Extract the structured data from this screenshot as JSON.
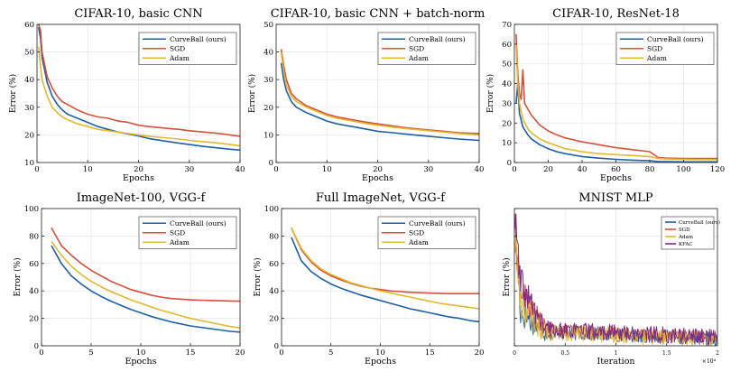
{
  "colors": {
    "curveball": "#1c5fa8",
    "sgd": "#d6503a",
    "adam": "#e3b72e",
    "kfac": "#7b2a86",
    "grid": "#e6e6e6",
    "axis": "#222222"
  },
  "chart_data": [
    {
      "type": "line",
      "title": "CIFAR-10, basic CNN",
      "xlabel": "Epochs",
      "ylabel": "Error (%)",
      "xlim": [
        0,
        40
      ],
      "ylim": [
        10,
        60
      ],
      "xticks": [
        0,
        10,
        20,
        30,
        40
      ],
      "yticks": [
        10,
        20,
        30,
        40,
        50,
        60
      ],
      "grid": true,
      "legend": "top-right",
      "series": [
        {
          "name": "CurveBall (ours)",
          "color_key": "curveball",
          "x": [
            0.3,
            0.7,
            1,
            2,
            3,
            4,
            5,
            6,
            8,
            10,
            12,
            14,
            16,
            18,
            20,
            22,
            25,
            28,
            30,
            33,
            36,
            38,
            40
          ],
          "y": [
            59,
            55,
            48,
            39,
            34,
            31,
            29,
            27.5,
            26,
            24.5,
            23,
            22,
            21,
            20.3,
            19.6,
            18.7,
            17.8,
            17,
            16.5,
            15.8,
            15.2,
            14.8,
            14.5
          ]
        },
        {
          "name": "SGD",
          "color_key": "sgd",
          "x": [
            0.3,
            0.7,
            1,
            2,
            3,
            4,
            5,
            6,
            8,
            10,
            12,
            14,
            16,
            18,
            20,
            22,
            25,
            28,
            30,
            33,
            36,
            38,
            40
          ],
          "y": [
            60,
            58,
            50,
            41,
            37,
            34,
            32,
            31,
            29,
            27.5,
            26.5,
            26,
            25,
            24.5,
            23.5,
            23,
            22.5,
            22,
            21.5,
            21,
            20.5,
            20,
            19.5
          ]
        },
        {
          "name": "Adam",
          "color_key": "adam",
          "x": [
            0.3,
            0.7,
            1,
            2,
            3,
            4,
            5,
            6,
            8,
            10,
            12,
            14,
            16,
            18,
            20,
            22,
            25,
            28,
            30,
            33,
            36,
            38,
            40
          ],
          "y": [
            52,
            45,
            40,
            34,
            30,
            28,
            26.5,
            25.5,
            24,
            23,
            22,
            21.5,
            21,
            20.5,
            20,
            19.5,
            19,
            18.5,
            18,
            17.5,
            17,
            16.5,
            16
          ]
        }
      ]
    },
    {
      "type": "line",
      "title": "CIFAR-10, basic CNN + batch-norm",
      "xlabel": "Epochs",
      "ylabel": "Error (%)",
      "xlim": [
        0,
        40
      ],
      "ylim": [
        0,
        50
      ],
      "xticks": [
        0,
        10,
        20,
        30,
        40
      ],
      "yticks": [
        0,
        10,
        20,
        30,
        40,
        50
      ],
      "grid": true,
      "legend": "top-right",
      "series": [
        {
          "name": "CurveBall (ours)",
          "color_key": "curveball",
          "x": [
            1,
            1.5,
            2,
            3,
            4,
            6,
            8,
            10,
            12,
            15,
            18,
            20,
            23,
            26,
            30,
            33,
            36,
            40
          ],
          "y": [
            36,
            30,
            26,
            22,
            20,
            18,
            16.5,
            15,
            14,
            13,
            12,
            11.3,
            10.8,
            10.2,
            9.5,
            9,
            8.5,
            8
          ]
        },
        {
          "name": "SGD",
          "color_key": "sgd",
          "x": [
            1,
            1.5,
            2,
            3,
            4,
            6,
            8,
            10,
            12,
            15,
            18,
            20,
            23,
            26,
            30,
            33,
            36,
            40
          ],
          "y": [
            41,
            35,
            30,
            25,
            23,
            20.5,
            19,
            17.5,
            16.5,
            15.5,
            14.5,
            14,
            13.2,
            12.5,
            11.8,
            11.3,
            10.8,
            10.5
          ]
        },
        {
          "name": "Adam",
          "color_key": "adam",
          "x": [
            1,
            1.5,
            2,
            3,
            4,
            6,
            8,
            10,
            12,
            15,
            18,
            20,
            23,
            26,
            30,
            33,
            36,
            40
          ],
          "y": [
            40,
            33,
            28,
            24,
            22,
            20,
            18.5,
            17,
            16,
            15,
            14,
            13.5,
            12.8,
            12.2,
            11.5,
            11,
            10.5,
            10
          ]
        }
      ]
    },
    {
      "type": "line",
      "title": "CIFAR-10, ResNet-18",
      "xlabel": "Epochs",
      "ylabel": "Error (%)",
      "xlim": [
        0,
        120
      ],
      "ylim": [
        0,
        70
      ],
      "xticks": [
        0,
        20,
        40,
        60,
        80,
        100,
        120
      ],
      "yticks": [
        0,
        10,
        20,
        30,
        40,
        50,
        60,
        70
      ],
      "grid": true,
      "legend": "top-right",
      "series": [
        {
          "name": "CurveBall (ours)",
          "color_key": "curveball",
          "x": [
            1,
            2,
            3,
            5,
            8,
            10,
            15,
            20,
            25,
            30,
            40,
            50,
            60,
            70,
            80,
            85,
            90,
            100,
            110,
            120
          ],
          "y": [
            30,
            40,
            25,
            18,
            14,
            12,
            9,
            7,
            5.5,
            4.5,
            3,
            2.2,
            1.6,
            1.2,
            0.9,
            0.5,
            0.4,
            0.3,
            0.3,
            0.3
          ]
        },
        {
          "name": "SGD",
          "color_key": "sgd",
          "x": [
            1,
            2,
            3,
            4,
            5,
            6,
            8,
            10,
            15,
            20,
            25,
            30,
            40,
            50,
            60,
            70,
            80,
            85,
            90,
            100,
            110,
            120
          ],
          "y": [
            65,
            45,
            35,
            32,
            47,
            30,
            27,
            24,
            19,
            16,
            14,
            12.5,
            10.5,
            9,
            7.5,
            6.5,
            5.5,
            2.5,
            2.2,
            2,
            2,
            2
          ]
        },
        {
          "name": "Adam",
          "color_key": "adam",
          "x": [
            1,
            2,
            3,
            5,
            8,
            10,
            15,
            20,
            25,
            30,
            40,
            50,
            60,
            70,
            80,
            85,
            90,
            100,
            110,
            120
          ],
          "y": [
            60,
            40,
            30,
            22,
            17,
            15,
            12,
            10,
            8.5,
            7,
            5.5,
            4.5,
            4,
            3.5,
            3,
            2,
            1.8,
            1.6,
            1.5,
            1.5
          ]
        }
      ]
    },
    {
      "type": "line",
      "title": "ImageNet-100, VGG-f",
      "xlabel": "Epochs",
      "ylabel": "Error (%)",
      "xlim": [
        0,
        20
      ],
      "ylim": [
        0,
        100
      ],
      "xticks": [
        0,
        5,
        10,
        15,
        20
      ],
      "yticks": [
        0,
        20,
        40,
        60,
        80,
        100
      ],
      "grid": true,
      "legend": "top-right",
      "series": [
        {
          "name": "CurveBall (ours)",
          "color_key": "curveball",
          "x": [
            1,
            2,
            3,
            4,
            5,
            6,
            7,
            8,
            9,
            10,
            11,
            12,
            13,
            14,
            15,
            16,
            17,
            18,
            19,
            20
          ],
          "y": [
            73,
            60,
            51,
            45,
            40,
            36,
            32.5,
            29.5,
            26.5,
            24,
            21.5,
            19.5,
            17.5,
            16,
            14.5,
            13.5,
            12.5,
            11.5,
            10.5,
            10
          ]
        },
        {
          "name": "SGD",
          "color_key": "sgd",
          "x": [
            1,
            2,
            3,
            4,
            5,
            6,
            7,
            8,
            9,
            10,
            11,
            12,
            13,
            14,
            15,
            16,
            17,
            18,
            19,
            20
          ],
          "y": [
            86,
            73,
            66,
            60,
            55,
            51,
            47,
            44,
            41,
            39,
            37,
            35.5,
            34.5,
            34,
            33.5,
            33.2,
            33,
            32.8,
            32.6,
            32.5
          ]
        },
        {
          "name": "Adam",
          "color_key": "adam",
          "x": [
            1,
            2,
            3,
            4,
            5,
            6,
            7,
            8,
            9,
            10,
            11,
            12,
            13,
            14,
            15,
            16,
            17,
            18,
            19,
            20
          ],
          "y": [
            76,
            66,
            58,
            52,
            47,
            43,
            39.5,
            36.5,
            33.5,
            31,
            28.5,
            26,
            24,
            22,
            20,
            18.5,
            17,
            15.5,
            14,
            13
          ]
        }
      ]
    },
    {
      "type": "line",
      "title": "Full ImageNet, VGG-f",
      "xlabel": "Epochs",
      "ylabel": "Error (%)",
      "xlim": [
        0,
        20
      ],
      "ylim": [
        0,
        100
      ],
      "xticks": [
        0,
        5,
        10,
        15,
        20
      ],
      "yticks": [
        0,
        20,
        40,
        60,
        80,
        100
      ],
      "grid": true,
      "legend": "top-right",
      "series": [
        {
          "name": "CurveBall (ours)",
          "color_key": "curveball",
          "x": [
            1,
            2,
            3,
            4,
            5,
            6,
            7,
            8,
            9,
            10,
            11,
            12,
            13,
            14,
            15,
            16,
            17,
            18,
            19,
            20
          ],
          "y": [
            79,
            62,
            54,
            49,
            45,
            42,
            39.5,
            37,
            35,
            33,
            31,
            29,
            27,
            25.5,
            24,
            22.5,
            21,
            20,
            18.5,
            17.5
          ]
        },
        {
          "name": "SGD",
          "color_key": "sgd",
          "x": [
            1,
            2,
            3,
            4,
            5,
            6,
            7,
            8,
            9,
            10,
            11,
            12,
            13,
            14,
            15,
            16,
            17,
            18,
            19,
            20
          ],
          "y": [
            86,
            70,
            61,
            55,
            51,
            48,
            45.5,
            43.5,
            42,
            41,
            40,
            39.5,
            39,
            38.7,
            38.4,
            38.2,
            38,
            38,
            38,
            38
          ]
        },
        {
          "name": "Adam",
          "color_key": "adam",
          "x": [
            1,
            2,
            3,
            4,
            5,
            6,
            7,
            8,
            9,
            10,
            11,
            12,
            13,
            14,
            15,
            16,
            17,
            18,
            19,
            20
          ],
          "y": [
            86,
            71,
            62,
            56,
            52,
            49,
            46,
            44,
            42,
            40,
            38.5,
            37,
            35.5,
            34,
            32.5,
            31,
            30,
            29,
            28,
            27
          ]
        }
      ]
    },
    {
      "type": "line",
      "title": "MNIST MLP",
      "xlabel": "Iteration",
      "ylabel": "Error (%)",
      "xlim": [
        0,
        2
      ],
      "ylim": [
        0,
        1
      ],
      "xticks": [
        0,
        0.5,
        1,
        1.5,
        2
      ],
      "xticklabels": [
        "0",
        "0.5",
        "1",
        "1.5",
        "2"
      ],
      "yticks": [
        0,
        0.2,
        0.4,
        0.6,
        0.8,
        1
      ],
      "ytickslabels_shown": false,
      "x_exponent": "×10⁴",
      "grid": true,
      "legend": "top-right",
      "series": [
        {
          "name": "CurveBall (ours)",
          "color_key": "curveball",
          "profile": [
            0.95,
            0.25,
            0.1,
            0.05
          ],
          "noise": 0.05
        },
        {
          "name": "SGD",
          "color_key": "sgd",
          "profile": [
            0.9,
            0.4,
            0.12,
            0.06
          ],
          "noise": 0.05
        },
        {
          "name": "Adam",
          "color_key": "adam",
          "profile": [
            0.85,
            0.3,
            0.1,
            0.05
          ],
          "noise": 0.06
        },
        {
          "name": "KFAC",
          "color_key": "kfac",
          "profile": [
            0.98,
            0.45,
            0.12,
            0.06
          ],
          "noise": 0.06
        }
      ]
    }
  ]
}
